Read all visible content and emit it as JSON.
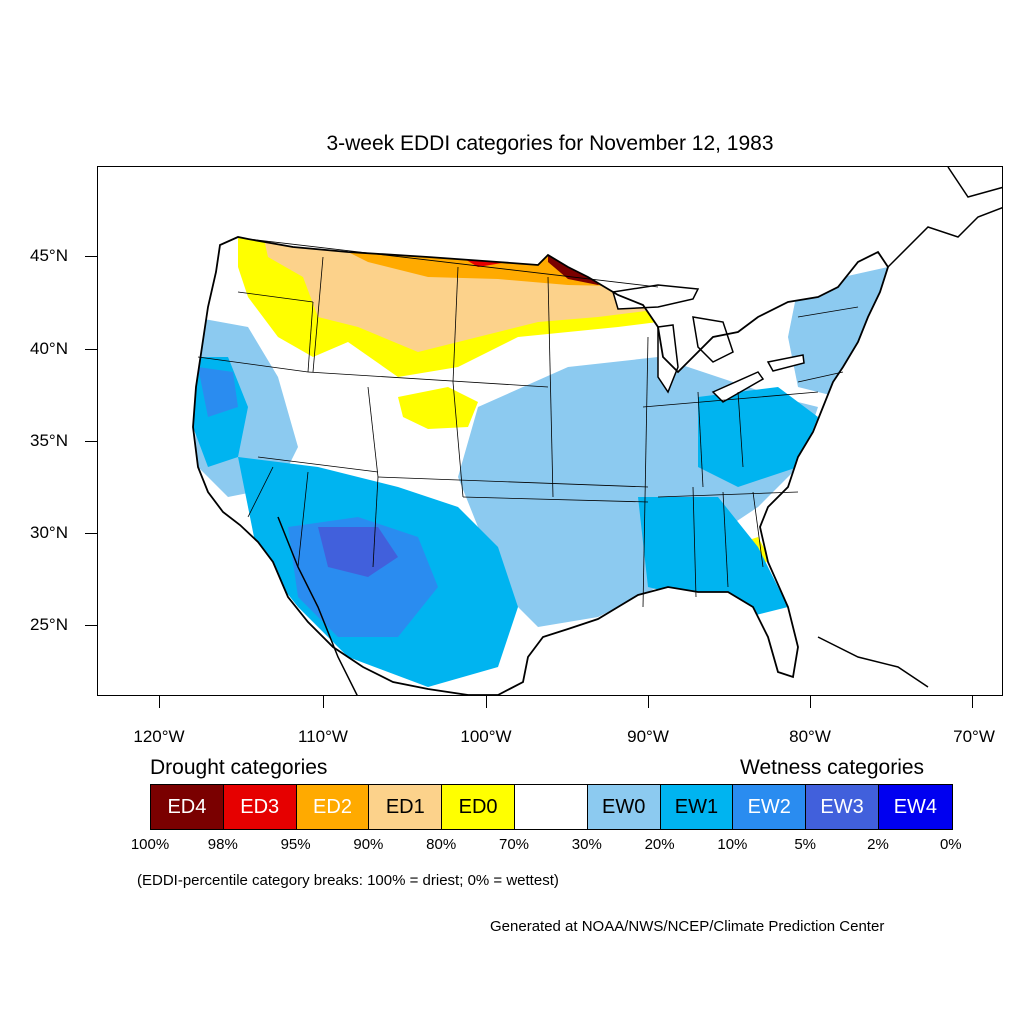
{
  "title": "3-week EDDI categories for November 12, 1983",
  "lat_labels": [
    "45°N",
    "40°N",
    "35°N",
    "30°N",
    "25°N"
  ],
  "lon_labels": [
    "120°W",
    "110°W",
    "100°W",
    "90°W",
    "80°W",
    "70°W"
  ],
  "legend": {
    "drought_heading": "Drought categories",
    "wetness_heading": "Wetness categories",
    "categories": [
      {
        "label": "ED4",
        "color": "#7a0000",
        "text_color": "#ffffff"
      },
      {
        "label": "ED3",
        "color": "#e60000",
        "text_color": "#ffffff"
      },
      {
        "label": "ED2",
        "color": "#ffaa00",
        "text_color": "#ffffff"
      },
      {
        "label": "ED1",
        "color": "#fcd28b",
        "text_color": "#000000"
      },
      {
        "label": "ED0",
        "color": "#ffff00",
        "text_color": "#000000"
      },
      {
        "label": "",
        "color": "#ffffff",
        "text_color": "#000000"
      },
      {
        "label": "EW0",
        "color": "#8ccaf0",
        "text_color": "#000000"
      },
      {
        "label": "EW1",
        "color": "#00b4f0",
        "text_color": "#000000"
      },
      {
        "label": "EW2",
        "color": "#2a8cf0",
        "text_color": "#ffffff"
      },
      {
        "label": "EW3",
        "color": "#4160dc",
        "text_color": "#ffffff"
      },
      {
        "label": "EW4",
        "color": "#0000f0",
        "text_color": "#ffffff"
      }
    ],
    "breaks": [
      "100%",
      "98%",
      "95%",
      "90%",
      "80%",
      "70%",
      "30%",
      "20%",
      "10%",
      "5%",
      "2%",
      "0%"
    ]
  },
  "note": "(EDDI-percentile category breaks: 100% = driest; 0% = wettest)",
  "credit": "Generated at NOAA/NWS/NCEP/Climate Prediction Center"
}
